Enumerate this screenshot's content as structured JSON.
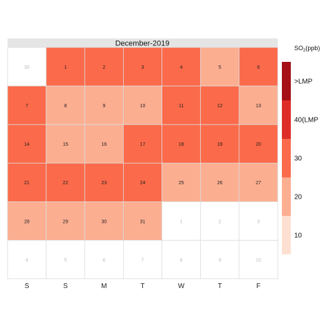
{
  "chart_data": {
    "type": "heatmap",
    "title": "December-2019",
    "legend_title_main": "SO",
    "legend_title_sub": "2",
    "legend_title_unit": "(ppb)",
    "weekday_labels": [
      "S",
      "S",
      "M",
      "T",
      "W",
      "T",
      "F"
    ],
    "legend": {
      "bins": [
        {
          "color": "#fee0d2"
        },
        {
          "color": "#fcae91"
        },
        {
          "color": "#fb6a4a"
        },
        {
          "color": "#de2d26"
        },
        {
          "color": "#a50f15"
        }
      ],
      "labels": [
        "10",
        "20",
        "30",
        "40(LMP",
        ">LMP"
      ]
    },
    "colors": {
      "high": "#fb6a4a",
      "mid": "#fcae91",
      "empty": "#ffffff",
      "strip": "#e5e5e5",
      "border": "#dddddd"
    },
    "cells": [
      {
        "day": "30",
        "level": "empty",
        "in_month": false
      },
      {
        "day": "1",
        "level": "high",
        "in_month": true
      },
      {
        "day": "2",
        "level": "high",
        "in_month": true
      },
      {
        "day": "3",
        "level": "high",
        "in_month": true
      },
      {
        "day": "4",
        "level": "high",
        "in_month": true
      },
      {
        "day": "5",
        "level": "mid",
        "in_month": true
      },
      {
        "day": "6",
        "level": "high",
        "in_month": true
      },
      {
        "day": "7",
        "level": "high",
        "in_month": true
      },
      {
        "day": "8",
        "level": "mid",
        "in_month": true
      },
      {
        "day": "9",
        "level": "mid",
        "in_month": true
      },
      {
        "day": "10",
        "level": "mid",
        "in_month": true
      },
      {
        "day": "11",
        "level": "high",
        "in_month": true
      },
      {
        "day": "12",
        "level": "high",
        "in_month": true
      },
      {
        "day": "13",
        "level": "mid",
        "in_month": true
      },
      {
        "day": "14",
        "level": "high",
        "in_month": true
      },
      {
        "day": "15",
        "level": "mid",
        "in_month": true
      },
      {
        "day": "16",
        "level": "mid",
        "in_month": true
      },
      {
        "day": "17",
        "level": "high",
        "in_month": true
      },
      {
        "day": "18",
        "level": "high",
        "in_month": true
      },
      {
        "day": "19",
        "level": "high",
        "in_month": true
      },
      {
        "day": "20",
        "level": "high",
        "in_month": true
      },
      {
        "day": "21",
        "level": "high",
        "in_month": true
      },
      {
        "day": "22",
        "level": "high",
        "in_month": true
      },
      {
        "day": "23",
        "level": "high",
        "in_month": true
      },
      {
        "day": "24",
        "level": "high",
        "in_month": true
      },
      {
        "day": "25",
        "level": "mid",
        "in_month": true
      },
      {
        "day": "26",
        "level": "mid",
        "in_month": true
      },
      {
        "day": "27",
        "level": "mid",
        "in_month": true
      },
      {
        "day": "28",
        "level": "mid",
        "in_month": true
      },
      {
        "day": "29",
        "level": "mid",
        "in_month": true
      },
      {
        "day": "30",
        "level": "mid",
        "in_month": true
      },
      {
        "day": "31",
        "level": "mid",
        "in_month": true
      },
      {
        "day": "1",
        "level": "empty",
        "in_month": false
      },
      {
        "day": "2",
        "level": "empty",
        "in_month": false
      },
      {
        "day": "3",
        "level": "empty",
        "in_month": false
      },
      {
        "day": "4",
        "level": "empty",
        "in_month": false
      },
      {
        "day": "5",
        "level": "empty",
        "in_month": false
      },
      {
        "day": "6",
        "level": "empty",
        "in_month": false
      },
      {
        "day": "7",
        "level": "empty",
        "in_month": false
      },
      {
        "day": "8",
        "level": "empty",
        "in_month": false
      },
      {
        "day": "9",
        "level": "empty",
        "in_month": false
      },
      {
        "day": "10",
        "level": "empty",
        "in_month": false
      }
    ]
  }
}
